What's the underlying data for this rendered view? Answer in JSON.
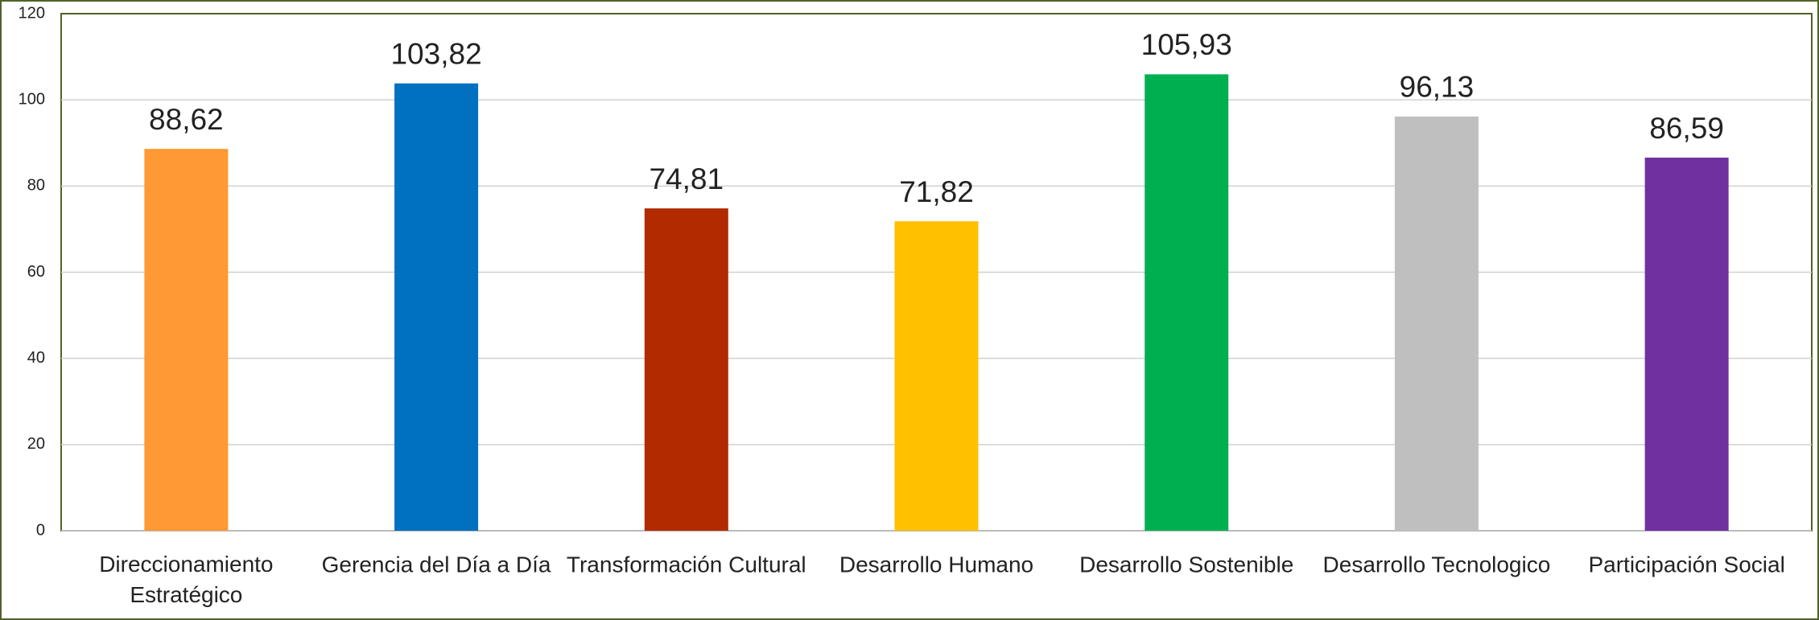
{
  "chart_data": {
    "type": "bar",
    "categories": [
      "Direccionamiento Estratégico",
      "Gerencia del Día a Día",
      "Transformación Cultural",
      "Desarrollo Humano",
      "Desarrollo Sostenible",
      "Desarrollo Tecnologico",
      "Participación Social"
    ],
    "values": [
      88.62,
      103.82,
      74.81,
      71.82,
      105.93,
      96.13,
      86.59
    ],
    "value_labels": [
      "88,62",
      "103,82",
      "74,81",
      "71,82",
      "105,93",
      "96,13",
      "86,59"
    ],
    "colors": [
      "#ff9933",
      "#0070c0",
      "#b22a00",
      "#ffc000",
      "#00b050",
      "#bfbfbf",
      "#7030a0"
    ],
    "ylim": [
      0,
      120
    ],
    "yticks": [
      0,
      20,
      40,
      60,
      80,
      100,
      120
    ],
    "grid": true
  }
}
